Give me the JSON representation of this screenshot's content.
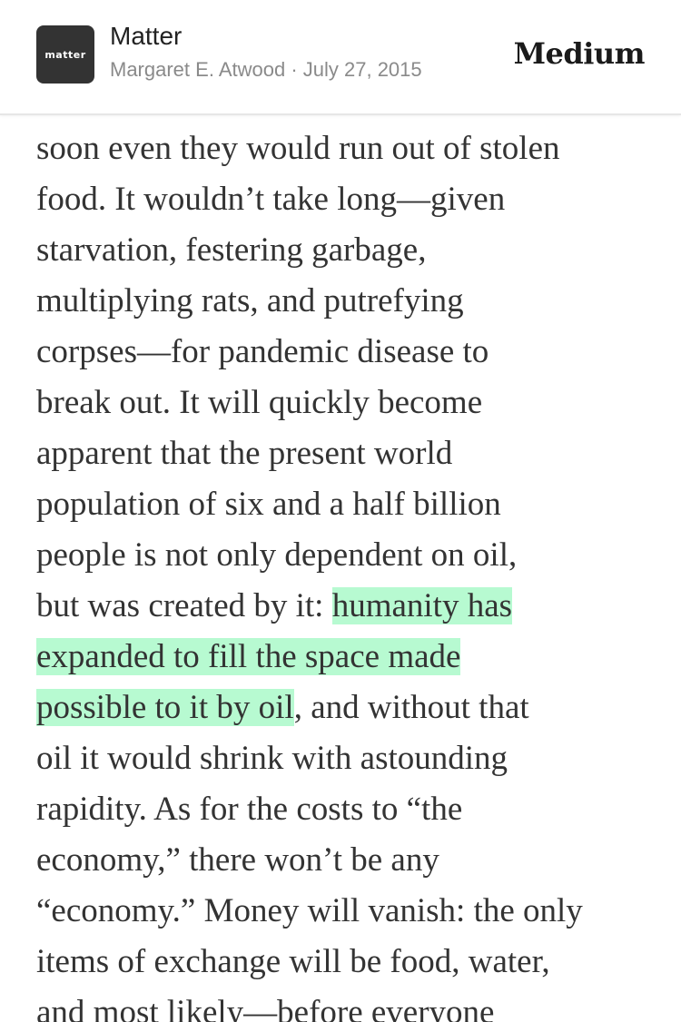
{
  "header": {
    "logo_text": "matter",
    "publication": "Matter",
    "byline": "Margaret E. Atwood · July 27, 2015",
    "brand": "Medium"
  },
  "article": {
    "highlight_color": "#b7fad1",
    "lines": [
      {
        "pre": "soon even they would run out of stolen",
        "hl": "",
        "post": ""
      },
      {
        "pre": "food. It wouldn’t take long—given",
        "hl": "",
        "post": ""
      },
      {
        "pre": "starvation, festering garbage,",
        "hl": "",
        "post": ""
      },
      {
        "pre": "multiplying rats, and putrefying",
        "hl": "",
        "post": ""
      },
      {
        "pre": "corpses—for pandemic disease to",
        "hl": "",
        "post": ""
      },
      {
        "pre": "break out. It will quickly become",
        "hl": "",
        "post": ""
      },
      {
        "pre": "apparent that the present world",
        "hl": "",
        "post": ""
      },
      {
        "pre": "population of six and a half billion",
        "hl": "",
        "post": ""
      },
      {
        "pre": "people is not only dependent on oil,",
        "hl": "",
        "post": ""
      },
      {
        "pre": "but was created by it: ",
        "hl": "humanity has",
        "post": ""
      },
      {
        "pre": "",
        "hl": "expanded to fill the space made",
        "post": ""
      },
      {
        "pre": "",
        "hl": "possible to it by oil",
        "post": ", and without that"
      },
      {
        "pre": "oil it would shrink with astounding",
        "hl": "",
        "post": ""
      },
      {
        "pre": "rapidity. As for the costs to “the",
        "hl": "",
        "post": ""
      },
      {
        "pre": "economy,” there won’t be any",
        "hl": "",
        "post": ""
      },
      {
        "pre": "“economy.” Money will vanish: the only",
        "hl": "",
        "post": ""
      },
      {
        "pre": "items of exchange will be food, water,",
        "hl": "",
        "post": ""
      },
      {
        "pre": "and most likely—before everyone",
        "hl": "",
        "post": ""
      }
    ]
  }
}
